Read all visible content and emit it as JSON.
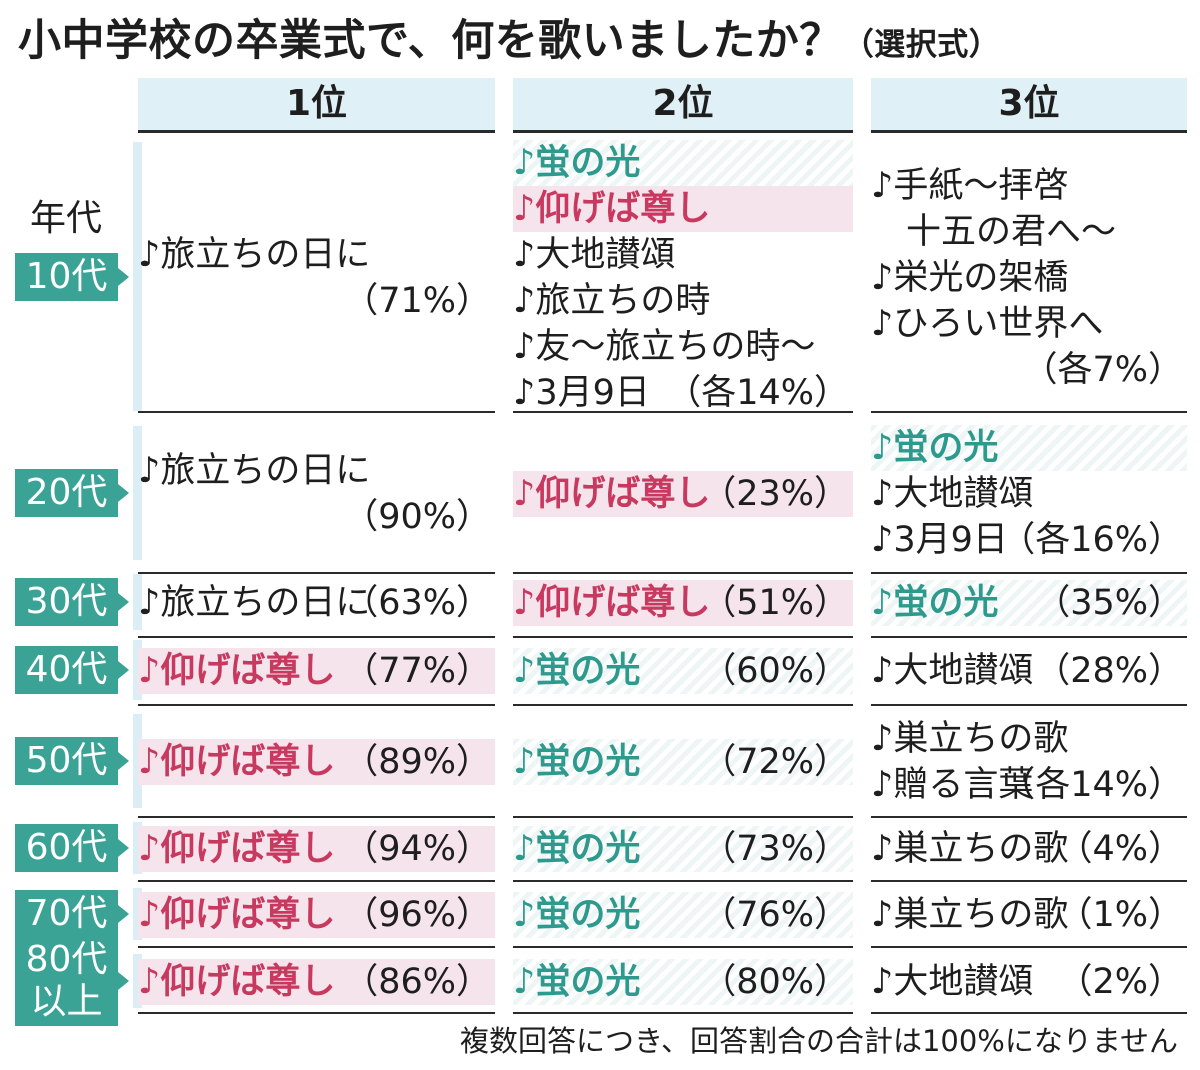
{
  "title": "小中学校の卒業式で、何を歌いましたか？",
  "subtitle": "（選択式）",
  "generation_header": "年代",
  "rank_headers": [
    "1位",
    "2位",
    "3位"
  ],
  "footer": "複数回答につき、回答割合の合計は100%になりません",
  "colors": {
    "pink": "#c8395f",
    "teal": "#2e9a8e",
    "tab": "#3aa396",
    "header_bg": "#dff0f6"
  },
  "chart_data": {
    "type": "table",
    "columns": [
      "年代",
      "1位",
      "2位",
      "3位"
    ],
    "rows": [
      {
        "generation": [
          "10代"
        ],
        "ranks": [
          {
            "songs": [
              "♪旅立ちの日に"
            ],
            "pct": "（71%）"
          },
          {
            "songs": [
              "♪蛍の光",
              "♪仰げば尊し",
              "♪大地讃頌",
              "♪旅立ちの時",
              "♪友〜旅立ちの時〜",
              "♪3月9日"
            ],
            "pct": "（各14%）"
          },
          {
            "songs": [
              "♪手紙〜拝啓 十五の君へ〜",
              "♪栄光の架橋",
              "♪ひろい世界へ"
            ],
            "pct": "（各7%）"
          }
        ]
      },
      {
        "generation": [
          "20代"
        ],
        "ranks": [
          {
            "songs": [
              "♪旅立ちの日に"
            ],
            "pct": "（90%）"
          },
          {
            "songs": [
              "♪仰げば尊し"
            ],
            "pct": "（23%）"
          },
          {
            "songs": [
              "♪蛍の光",
              "♪大地讃頌",
              "♪3月9日"
            ],
            "pct": "（各16%）"
          }
        ]
      },
      {
        "generation": [
          "30代"
        ],
        "ranks": [
          {
            "songs": [
              "♪旅立ちの日に"
            ],
            "pct": "（63%）"
          },
          {
            "songs": [
              "♪仰げば尊し"
            ],
            "pct": "（51%）"
          },
          {
            "songs": [
              "♪蛍の光"
            ],
            "pct": "（35%）"
          }
        ]
      },
      {
        "generation": [
          "40代"
        ],
        "ranks": [
          {
            "songs": [
              "♪仰げば尊し"
            ],
            "pct": "（77%）"
          },
          {
            "songs": [
              "♪蛍の光"
            ],
            "pct": "（60%）"
          },
          {
            "songs": [
              "♪大地讃頌"
            ],
            "pct": "（28%）"
          }
        ]
      },
      {
        "generation": [
          "50代"
        ],
        "ranks": [
          {
            "songs": [
              "♪仰げば尊し"
            ],
            "pct": "（89%）"
          },
          {
            "songs": [
              "♪蛍の光"
            ],
            "pct": "（72%）"
          },
          {
            "songs": [
              "♪巣立ちの歌",
              "♪贈る言葉"
            ],
            "pct": "（各14%）"
          }
        ]
      },
      {
        "generation": [
          "60代"
        ],
        "ranks": [
          {
            "songs": [
              "♪仰げば尊し"
            ],
            "pct": "（94%）"
          },
          {
            "songs": [
              "♪蛍の光"
            ],
            "pct": "（73%）"
          },
          {
            "songs": [
              "♪巣立ちの歌"
            ],
            "pct": "（4%）"
          }
        ]
      },
      {
        "generation": [
          "70代"
        ],
        "ranks": [
          {
            "songs": [
              "♪仰げば尊し"
            ],
            "pct": "（96%）"
          },
          {
            "songs": [
              "♪蛍の光"
            ],
            "pct": "（76%）"
          },
          {
            "songs": [
              "♪巣立ちの歌"
            ],
            "pct": "（1%）"
          }
        ]
      },
      {
        "generation": [
          "80代",
          "以上"
        ],
        "ranks": [
          {
            "songs": [
              "♪仰げば尊し"
            ],
            "pct": "（86%）"
          },
          {
            "songs": [
              "♪蛍の光"
            ],
            "pct": "（80%）"
          },
          {
            "songs": [
              "♪大地讃頌"
            ],
            "pct": "（2%）"
          }
        ]
      }
    ]
  }
}
